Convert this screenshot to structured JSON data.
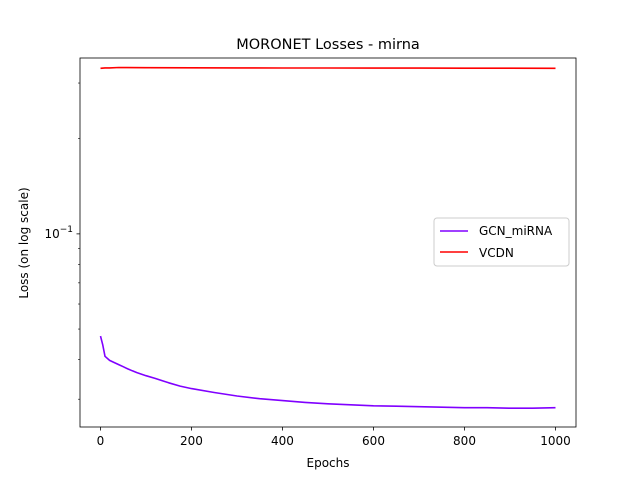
{
  "chart_data": {
    "type": "line",
    "title": "MORONET Losses - mirna",
    "xlabel": "Epochs",
    "ylabel": "Loss (on log scale)",
    "yscale": "log",
    "xlim": [
      -45,
      1045
    ],
    "ylim": [
      0.0245,
      0.36
    ],
    "xticks": [
      0,
      200,
      400,
      600,
      800,
      1000
    ],
    "xtick_labels": [
      "0",
      "200",
      "400",
      "600",
      "800",
      "1000"
    ],
    "yticks": [
      0.1
    ],
    "ytick_labels": [
      "10^-1"
    ],
    "grid": false,
    "legend": {
      "position": "center-right"
    },
    "series": [
      {
        "name": "GCN_miRNA",
        "color": "#8000ff",
        "x": [
          0,
          5,
          10,
          20,
          30,
          40,
          50,
          60,
          70,
          80,
          100,
          120,
          150,
          175,
          200,
          250,
          300,
          350,
          400,
          450,
          500,
          550,
          600,
          650,
          700,
          750,
          800,
          850,
          900,
          950,
          1000
        ],
        "y": [
          0.0475,
          0.0445,
          0.041,
          0.0398,
          0.0392,
          0.0386,
          0.038,
          0.0374,
          0.0369,
          0.0364,
          0.0356,
          0.0349,
          0.0338,
          0.033,
          0.0324,
          0.0315,
          0.0307,
          0.0301,
          0.0297,
          0.0293,
          0.029,
          0.0288,
          0.0286,
          0.0285,
          0.0284,
          0.0283,
          0.0282,
          0.0282,
          0.0281,
          0.0281,
          0.0282
        ]
      },
      {
        "name": "VCDN",
        "color": "#ff0000",
        "x": [
          0,
          10,
          20,
          40,
          100,
          200,
          300,
          400,
          500,
          600,
          700,
          800,
          900,
          1000
        ],
        "y": [
          0.334,
          0.335,
          0.335,
          0.336,
          0.3355,
          0.3352,
          0.335,
          0.3348,
          0.3346,
          0.3345,
          0.3344,
          0.3343,
          0.3342,
          0.3341
        ]
      }
    ]
  }
}
